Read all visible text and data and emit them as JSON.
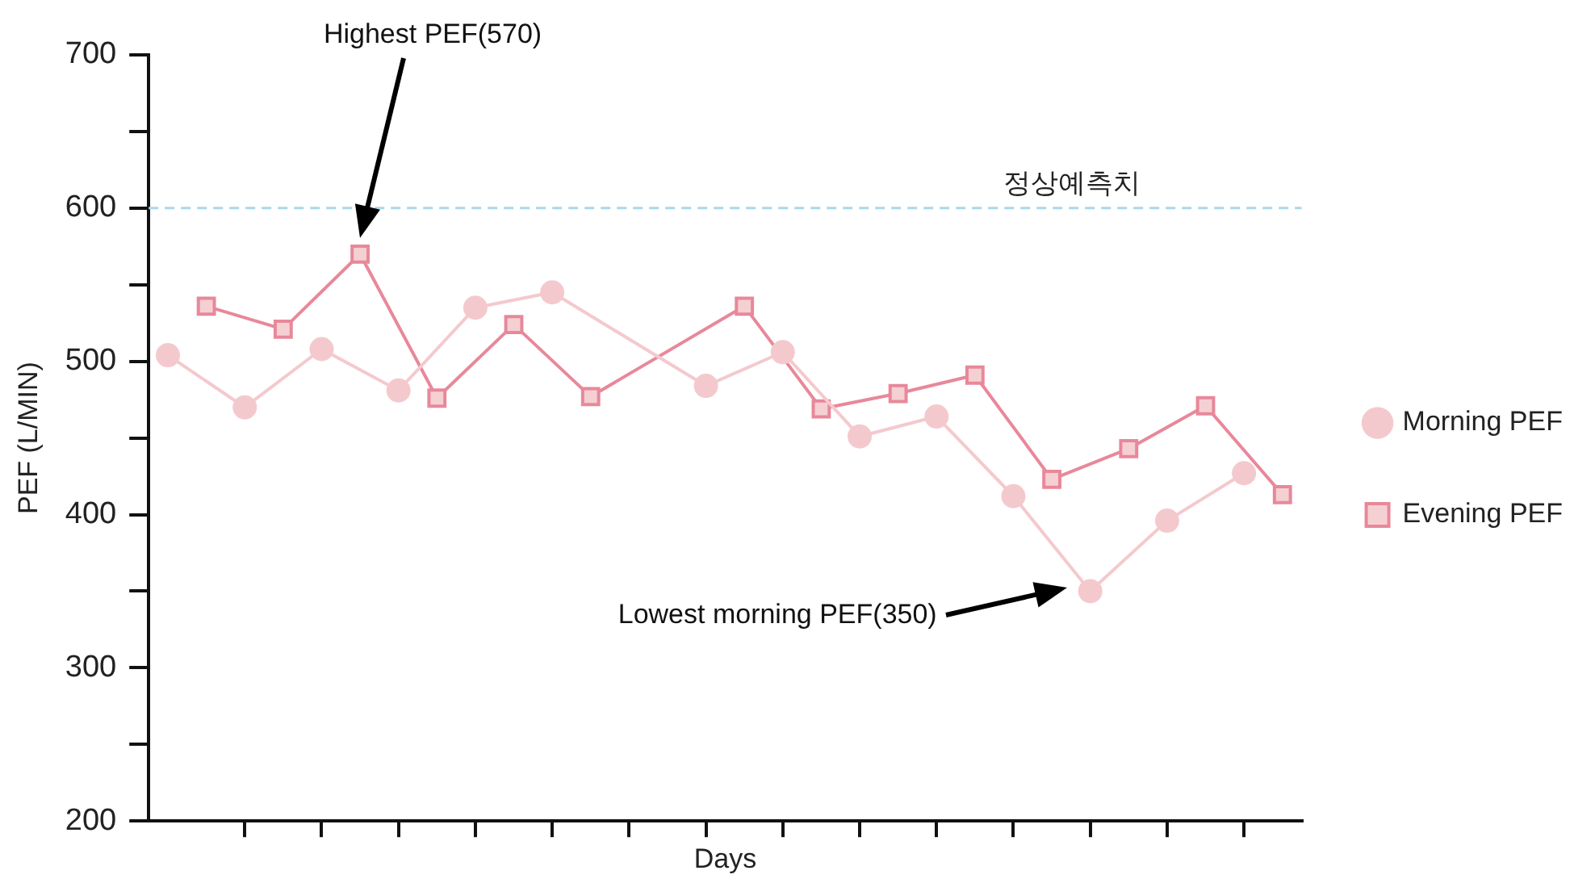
{
  "chart_data": {
    "type": "line",
    "xlabel": "Days",
    "ylabel": "PEF (L/MIN)",
    "categories": [
      null,
      null,
      null,
      null,
      null,
      null,
      null,
      null,
      null,
      null,
      null,
      null,
      null,
      null,
      null,
      null,
      null,
      null,
      null,
      null,
      null,
      null,
      null,
      null,
      null,
      null,
      null,
      null,
      null,
      null
    ],
    "ylim": [
      200,
      700
    ],
    "yticks": [
      200,
      {
        "value": 250,
        "label": null
      },
      300,
      {
        "value": 350,
        "label": null
      },
      400,
      {
        "value": 450,
        "label": null
      },
      500,
      {
        "value": 550,
        "label": null
      },
      600,
      {
        "value": 650,
        "label": null
      },
      700
    ],
    "tick_labels": "y",
    "grid": false,
    "legend": "right",
    "series": [
      {
        "name": "Morning PEF",
        "color": "#f4c9cd",
        "marker": "circle",
        "values": [
          504,
          null,
          470,
          null,
          508,
          null,
          481,
          null,
          535,
          null,
          545,
          null,
          null,
          null,
          484,
          null,
          506,
          null,
          451,
          null,
          464,
          null,
          412,
          null,
          350,
          null,
          396,
          null,
          427,
          null
        ]
      },
      {
        "name": "Evening PEF",
        "color": "#e8889a",
        "marker": "square",
        "values": [
          null,
          536,
          null,
          521,
          null,
          570,
          null,
          476,
          null,
          524,
          null,
          477,
          null,
          null,
          null,
          536,
          null,
          469,
          null,
          479,
          null,
          491,
          null,
          423,
          null,
          443,
          null,
          471,
          null,
          413
        ]
      }
    ],
    "ref_lines": [
      {
        "axis": "y",
        "value": 600,
        "label": "정상예측치",
        "color": "#a9d8ec",
        "line_style": "dashed"
      }
    ],
    "annotations": [
      "Highest PEF(570)",
      "Lowest morning PEF(350)"
    ]
  }
}
